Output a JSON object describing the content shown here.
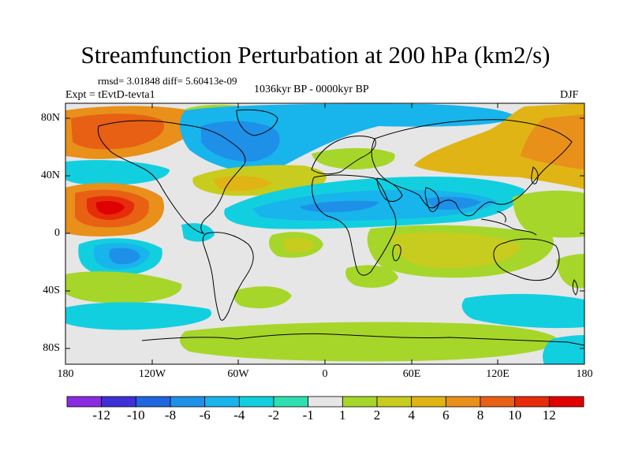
{
  "title": "Streamfunction Perturbation at 200 hPa (km2/s)",
  "stats": "rmsd= 3.01848 diff= 5.60413e-09",
  "experiment": "Expt = tEvtD-tevta1",
  "period": "1036kyr BP - 0000kyr BP",
  "season": "DJF",
  "lat_labels": [
    "80N",
    "40N",
    "0",
    "40S",
    "80S"
  ],
  "lon_labels": [
    "180",
    "120W",
    "60W",
    "0",
    "60E",
    "120E",
    "180"
  ],
  "colorbar": {
    "labels": [
      "-12",
      "-10",
      "-8",
      "-6",
      "-4",
      "-2",
      "-1",
      "1",
      "2",
      "4",
      "6",
      "8",
      "10",
      "12"
    ],
    "colors": [
      "#8a2be2",
      "#3f2fd8",
      "#1f66e0",
      "#1e90e8",
      "#18b4ec",
      "#12cfe0",
      "#2ee0b0",
      "#e6e6e6",
      "#a6d62a",
      "#c8cc1e",
      "#e0b414",
      "#e8901a",
      "#e86014",
      "#e62c0a",
      "#e00000"
    ]
  },
  "colors": {
    "neutral": "#e6e6e6",
    "coast": "#000000"
  }
}
